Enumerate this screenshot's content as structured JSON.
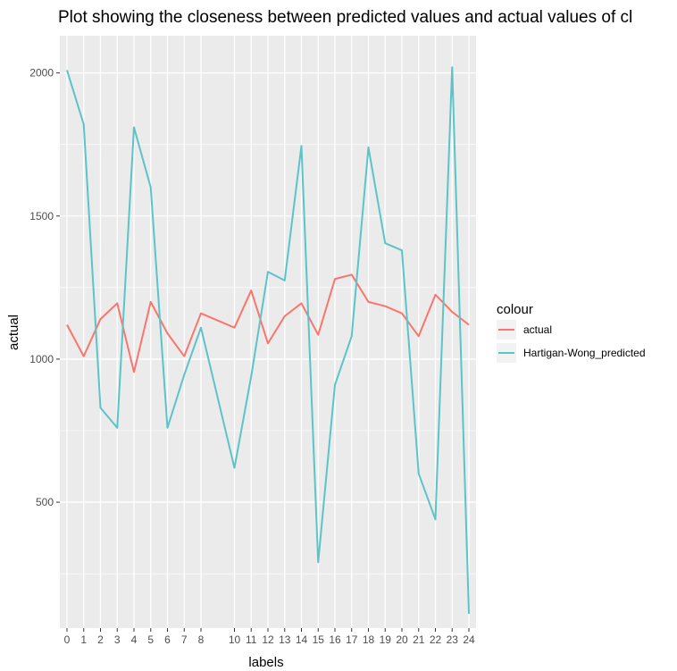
{
  "chart_data": {
    "type": "line",
    "title": "Plot showing the closeness between predicted values and actual values of cl",
    "xlabel": "labels",
    "ylabel": "actual",
    "x": [
      0,
      1,
      2,
      3,
      4,
      5,
      6,
      7,
      8,
      10,
      11,
      12,
      13,
      14,
      15,
      16,
      17,
      18,
      19,
      20,
      21,
      22,
      23,
      24
    ],
    "x_ticks": [
      "0",
      "1",
      "2",
      "3",
      "4",
      "5",
      "6",
      "7",
      "8",
      "10",
      "11",
      "12",
      "13",
      "14",
      "15",
      "16",
      "17",
      "18",
      "19",
      "20",
      "21",
      "22",
      "23",
      "24"
    ],
    "y_ticks": [
      500,
      1000,
      1500,
      2000
    ],
    "ylim": [
      60,
      2130
    ],
    "grid": true,
    "legend": {
      "title": "colour",
      "position": "right"
    },
    "series": [
      {
        "name": "actual",
        "color": "#F8766D",
        "values": [
          1120,
          1010,
          1140,
          1195,
          955,
          1200,
          1090,
          1010,
          1160,
          1110,
          1240,
          1055,
          1150,
          1195,
          1085,
          1280,
          1295,
          1200,
          1185,
          1160,
          1080,
          1225,
          1165,
          1120
        ]
      },
      {
        "name": "Hartigan-Wong_predicted",
        "color": "#5BC4C9",
        "values": [
          2010,
          1820,
          830,
          760,
          1810,
          1600,
          760,
          945,
          1110,
          620,
          940,
          1305,
          1275,
          1745,
          290,
          910,
          1080,
          1740,
          1405,
          1380,
          600,
          440,
          2020,
          110
        ]
      }
    ]
  }
}
